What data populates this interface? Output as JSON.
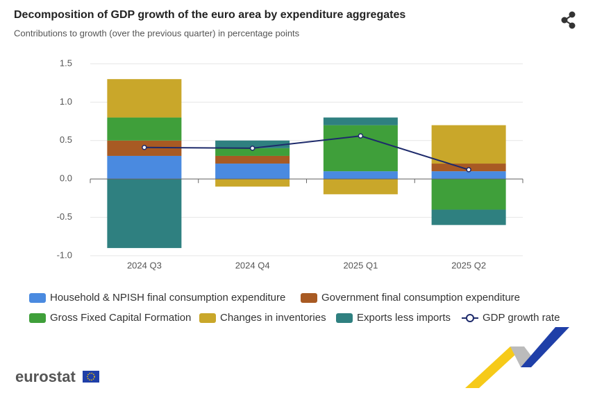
{
  "chart_data": {
    "type": "stacked-bar-line",
    "title": "Decomposition of GDP growth of the euro area by expenditure aggregates",
    "subtitle": "Contributions to growth (over the previous quarter) in percentage points",
    "categories": [
      "2024 Q3",
      "2024 Q4",
      "2025 Q1",
      "2025 Q2"
    ],
    "series": [
      {
        "name": "Household & NPISH final consumption expenditure",
        "color": "#4a8ae0",
        "values": [
          0.3,
          0.2,
          0.1,
          0.1
        ]
      },
      {
        "name": "Government final consumption expenditure",
        "color": "#a85a23",
        "values": [
          0.2,
          0.1,
          0.0,
          0.1
        ]
      },
      {
        "name": "Gross Fixed Capital Formation",
        "color": "#3f9f3a",
        "values": [
          0.3,
          0.1,
          0.6,
          -0.4
        ]
      },
      {
        "name": "Changes in inventories",
        "color": "#c9a72a",
        "values": [
          0.5,
          -0.1,
          -0.2,
          0.5
        ]
      },
      {
        "name": "Exports less imports",
        "color": "#2f8080",
        "values": [
          -0.9,
          0.1,
          0.1,
          -0.2
        ]
      },
      {
        "name": "GDP growth rate",
        "color": "#1d2a6b",
        "type": "line",
        "values": [
          0.41,
          0.4,
          0.56,
          0.12
        ]
      }
    ],
    "ylim": [
      -1.0,
      1.5
    ],
    "yticks": [
      {
        "value": -1,
        "label": "-1.0"
      },
      -0.5,
      {
        "value": 0,
        "label": "0.0"
      },
      0.5,
      {
        "value": 1,
        "label": "1.0"
      },
      1.5
    ],
    "grid": true
  },
  "logo": "eurostat"
}
